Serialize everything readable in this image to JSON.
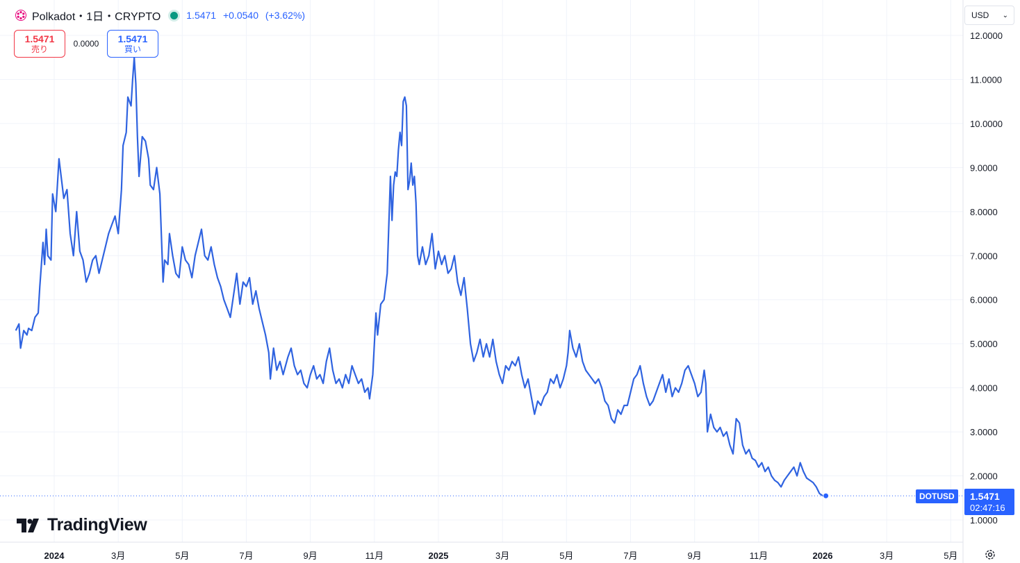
{
  "header": {
    "title": "Polkadot・1日・CRYPTO",
    "last": "1.5471",
    "change": "+0.0540",
    "change_pct": "(+3.62%)",
    "logo_icon": "polkadot-logo-icon",
    "status_color": "#089981"
  },
  "trade": {
    "sell_price": "1.5471",
    "sell_label": "売り",
    "spread": "0.0000",
    "buy_price": "1.5471",
    "buy_label": "買い"
  },
  "currency": {
    "selected": "USD"
  },
  "brand": {
    "name": "TradingView"
  },
  "price_badge": {
    "symbol": "DOTUSD",
    "price": "1.5471",
    "countdown": "02:47:16"
  },
  "colors": {
    "line": "#2f63e0",
    "accent": "#2962ff",
    "sell": "#f23645",
    "grid": "#f0f3fa"
  },
  "chart_data": {
    "type": "line",
    "ylim": [
      0.3,
      12.5
    ],
    "y_ticks": [
      "1.0000",
      "2.0000",
      "3.0000",
      "4.0000",
      "5.0000",
      "6.0000",
      "7.0000",
      "8.0000",
      "9.0000",
      "10.0000",
      "11.0000",
      "12.0000"
    ],
    "x_ticks": [
      {
        "label": "2024",
        "t": 0.0,
        "bold": true
      },
      {
        "label": "3月",
        "t": 2.0
      },
      {
        "label": "5月",
        "t": 4.0
      },
      {
        "label": "7月",
        "t": 6.0
      },
      {
        "label": "9月",
        "t": 8.0
      },
      {
        "label": "11月",
        "t": 10.0
      },
      {
        "label": "2025",
        "t": 12.0,
        "bold": true
      },
      {
        "label": "3月",
        "t": 14.0
      },
      {
        "label": "5月",
        "t": 16.0
      },
      {
        "label": "7月",
        "t": 18.0
      },
      {
        "label": "9月",
        "t": 20.0
      },
      {
        "label": "11月",
        "t": 22.0
      },
      {
        "label": "2026",
        "t": 24.0,
        "bold": true
      },
      {
        "label": "3月",
        "t": 26.0
      },
      {
        "label": "5月",
        "t": 28.0
      }
    ],
    "xlim": [
      -1.2,
      28.3
    ],
    "grid": true,
    "last_value": 1.5471,
    "series": [
      {
        "points": [
          [
            -1.2,
            5.3
          ],
          [
            -1.1,
            5.45
          ],
          [
            -1.05,
            4.9
          ],
          [
            -0.95,
            5.3
          ],
          [
            -0.85,
            5.2
          ],
          [
            -0.8,
            5.35
          ],
          [
            -0.7,
            5.3
          ],
          [
            -0.6,
            5.6
          ],
          [
            -0.5,
            5.7
          ],
          [
            -0.45,
            6.3
          ],
          [
            -0.35,
            7.3
          ],
          [
            -0.3,
            6.8
          ],
          [
            -0.25,
            7.6
          ],
          [
            -0.2,
            7.0
          ],
          [
            -0.1,
            6.9
          ],
          [
            -0.05,
            8.4
          ],
          [
            0.05,
            8.0
          ],
          [
            0.15,
            9.2
          ],
          [
            0.3,
            8.3
          ],
          [
            0.4,
            8.5
          ],
          [
            0.5,
            7.5
          ],
          [
            0.6,
            7.0
          ],
          [
            0.7,
            8.0
          ],
          [
            0.8,
            7.1
          ],
          [
            0.9,
            6.9
          ],
          [
            1.0,
            6.4
          ],
          [
            1.1,
            6.6
          ],
          [
            1.2,
            6.9
          ],
          [
            1.3,
            7.0
          ],
          [
            1.4,
            6.6
          ],
          [
            1.5,
            6.9
          ],
          [
            1.6,
            7.2
          ],
          [
            1.7,
            7.5
          ],
          [
            1.8,
            7.7
          ],
          [
            1.9,
            7.9
          ],
          [
            2.0,
            7.5
          ],
          [
            2.1,
            8.5
          ],
          [
            2.15,
            9.5
          ],
          [
            2.25,
            9.8
          ],
          [
            2.3,
            10.6
          ],
          [
            2.4,
            10.4
          ],
          [
            2.45,
            11.0
          ],
          [
            2.5,
            11.5
          ],
          [
            2.55,
            10.9
          ],
          [
            2.6,
            9.7
          ],
          [
            2.65,
            8.8
          ],
          [
            2.75,
            9.7
          ],
          [
            2.85,
            9.6
          ],
          [
            2.95,
            9.2
          ],
          [
            3.0,
            8.6
          ],
          [
            3.1,
            8.5
          ],
          [
            3.2,
            9.0
          ],
          [
            3.3,
            8.4
          ],
          [
            3.4,
            6.4
          ],
          [
            3.45,
            6.9
          ],
          [
            3.55,
            6.8
          ],
          [
            3.6,
            7.5
          ],
          [
            3.7,
            7.0
          ],
          [
            3.8,
            6.6
          ],
          [
            3.9,
            6.5
          ],
          [
            4.0,
            7.2
          ],
          [
            4.1,
            6.9
          ],
          [
            4.2,
            6.8
          ],
          [
            4.3,
            6.5
          ],
          [
            4.4,
            7.0
          ],
          [
            4.5,
            7.3
          ],
          [
            4.6,
            7.6
          ],
          [
            4.7,
            7.0
          ],
          [
            4.8,
            6.9
          ],
          [
            4.9,
            7.2
          ],
          [
            5.0,
            6.8
          ],
          [
            5.1,
            6.5
          ],
          [
            5.2,
            6.3
          ],
          [
            5.3,
            6.0
          ],
          [
            5.4,
            5.8
          ],
          [
            5.5,
            5.6
          ],
          [
            5.6,
            6.1
          ],
          [
            5.7,
            6.6
          ],
          [
            5.8,
            5.9
          ],
          [
            5.9,
            6.4
          ],
          [
            6.0,
            6.3
          ],
          [
            6.1,
            6.5
          ],
          [
            6.2,
            5.9
          ],
          [
            6.3,
            6.2
          ],
          [
            6.4,
            5.8
          ],
          [
            6.5,
            5.5
          ],
          [
            6.6,
            5.2
          ],
          [
            6.7,
            4.8
          ],
          [
            6.75,
            4.2
          ],
          [
            6.85,
            4.9
          ],
          [
            6.95,
            4.4
          ],
          [
            7.05,
            4.6
          ],
          [
            7.15,
            4.3
          ],
          [
            7.3,
            4.7
          ],
          [
            7.4,
            4.9
          ],
          [
            7.5,
            4.5
          ],
          [
            7.6,
            4.3
          ],
          [
            7.7,
            4.4
          ],
          [
            7.8,
            4.1
          ],
          [
            7.9,
            4.0
          ],
          [
            8.0,
            4.3
          ],
          [
            8.1,
            4.5
          ],
          [
            8.2,
            4.2
          ],
          [
            8.3,
            4.3
          ],
          [
            8.4,
            4.1
          ],
          [
            8.5,
            4.6
          ],
          [
            8.6,
            4.9
          ],
          [
            8.7,
            4.4
          ],
          [
            8.8,
            4.1
          ],
          [
            8.9,
            4.2
          ],
          [
            9.0,
            4.0
          ],
          [
            9.1,
            4.3
          ],
          [
            9.2,
            4.1
          ],
          [
            9.3,
            4.5
          ],
          [
            9.4,
            4.3
          ],
          [
            9.5,
            4.1
          ],
          [
            9.6,
            4.2
          ],
          [
            9.7,
            3.9
          ],
          [
            9.8,
            4.0
          ],
          [
            9.85,
            3.75
          ],
          [
            9.95,
            4.3
          ],
          [
            10.05,
            5.7
          ],
          [
            10.1,
            5.2
          ],
          [
            10.2,
            5.9
          ],
          [
            10.3,
            6.0
          ],
          [
            10.4,
            6.6
          ],
          [
            10.5,
            8.8
          ],
          [
            10.55,
            7.8
          ],
          [
            10.6,
            8.6
          ],
          [
            10.65,
            8.9
          ],
          [
            10.7,
            8.8
          ],
          [
            10.75,
            9.4
          ],
          [
            10.8,
            9.8
          ],
          [
            10.85,
            9.5
          ],
          [
            10.9,
            10.5
          ],
          [
            10.95,
            10.6
          ],
          [
            11.0,
            10.4
          ],
          [
            11.05,
            8.5
          ],
          [
            11.1,
            8.7
          ],
          [
            11.15,
            9.1
          ],
          [
            11.2,
            8.6
          ],
          [
            11.25,
            8.8
          ],
          [
            11.3,
            8.2
          ],
          [
            11.35,
            7.0
          ],
          [
            11.4,
            6.8
          ],
          [
            11.5,
            7.2
          ],
          [
            11.6,
            6.8
          ],
          [
            11.7,
            7.0
          ],
          [
            11.8,
            7.5
          ],
          [
            11.9,
            6.7
          ],
          [
            12.0,
            7.1
          ],
          [
            12.1,
            6.8
          ],
          [
            12.2,
            7.0
          ],
          [
            12.3,
            6.6
          ],
          [
            12.4,
            6.7
          ],
          [
            12.5,
            7.0
          ],
          [
            12.6,
            6.4
          ],
          [
            12.7,
            6.1
          ],
          [
            12.8,
            6.5
          ],
          [
            12.9,
            5.8
          ],
          [
            13.0,
            5.0
          ],
          [
            13.1,
            4.6
          ],
          [
            13.2,
            4.8
          ],
          [
            13.3,
            5.1
          ],
          [
            13.4,
            4.7
          ],
          [
            13.5,
            5.0
          ],
          [
            13.6,
            4.7
          ],
          [
            13.7,
            5.1
          ],
          [
            13.8,
            4.6
          ],
          [
            13.9,
            4.3
          ],
          [
            14.0,
            4.1
          ],
          [
            14.1,
            4.5
          ],
          [
            14.2,
            4.4
          ],
          [
            14.3,
            4.6
          ],
          [
            14.4,
            4.5
          ],
          [
            14.5,
            4.7
          ],
          [
            14.6,
            4.3
          ],
          [
            14.7,
            4.0
          ],
          [
            14.8,
            4.2
          ],
          [
            14.9,
            3.8
          ],
          [
            15.0,
            3.4
          ],
          [
            15.1,
            3.7
          ],
          [
            15.2,
            3.6
          ],
          [
            15.3,
            3.8
          ],
          [
            15.4,
            3.9
          ],
          [
            15.5,
            4.2
          ],
          [
            15.6,
            4.1
          ],
          [
            15.7,
            4.3
          ],
          [
            15.8,
            4.0
          ],
          [
            15.9,
            4.2
          ],
          [
            16.0,
            4.5
          ],
          [
            16.05,
            4.8
          ],
          [
            16.1,
            5.3
          ],
          [
            16.2,
            4.9
          ],
          [
            16.3,
            4.7
          ],
          [
            16.4,
            5.0
          ],
          [
            16.5,
            4.6
          ],
          [
            16.6,
            4.4
          ],
          [
            16.7,
            4.3
          ],
          [
            16.8,
            4.2
          ],
          [
            16.9,
            4.1
          ],
          [
            17.0,
            4.2
          ],
          [
            17.1,
            4.0
          ],
          [
            17.2,
            3.7
          ],
          [
            17.3,
            3.6
          ],
          [
            17.4,
            3.3
          ],
          [
            17.5,
            3.2
          ],
          [
            17.6,
            3.5
          ],
          [
            17.7,
            3.4
          ],
          [
            17.8,
            3.6
          ],
          [
            17.9,
            3.6
          ],
          [
            18.0,
            3.9
          ],
          [
            18.1,
            4.2
          ],
          [
            18.2,
            4.3
          ],
          [
            18.3,
            4.5
          ],
          [
            18.4,
            4.1
          ],
          [
            18.5,
            3.8
          ],
          [
            18.6,
            3.6
          ],
          [
            18.7,
            3.7
          ],
          [
            18.8,
            3.9
          ],
          [
            18.9,
            4.1
          ],
          [
            19.0,
            4.3
          ],
          [
            19.1,
            3.9
          ],
          [
            19.2,
            4.2
          ],
          [
            19.3,
            3.8
          ],
          [
            19.4,
            4.0
          ],
          [
            19.5,
            3.9
          ],
          [
            19.6,
            4.1
          ],
          [
            19.7,
            4.4
          ],
          [
            19.8,
            4.5
          ],
          [
            19.9,
            4.3
          ],
          [
            20.0,
            4.1
          ],
          [
            20.1,
            3.8
          ],
          [
            20.2,
            3.9
          ],
          [
            20.3,
            4.4
          ],
          [
            20.35,
            4.1
          ],
          [
            20.4,
            3.0
          ],
          [
            20.5,
            3.4
          ],
          [
            20.6,
            3.1
          ],
          [
            20.7,
            3.0
          ],
          [
            20.8,
            3.1
          ],
          [
            20.9,
            2.9
          ],
          [
            21.0,
            3.0
          ],
          [
            21.1,
            2.7
          ],
          [
            21.2,
            2.5
          ],
          [
            21.3,
            3.3
          ],
          [
            21.4,
            3.2
          ],
          [
            21.5,
            2.7
          ],
          [
            21.6,
            2.5
          ],
          [
            21.7,
            2.6
          ],
          [
            21.8,
            2.4
          ],
          [
            21.9,
            2.35
          ],
          [
            22.0,
            2.2
          ],
          [
            22.1,
            2.3
          ],
          [
            22.2,
            2.1
          ],
          [
            22.3,
            2.2
          ],
          [
            22.4,
            2.0
          ],
          [
            22.5,
            1.9
          ],
          [
            22.6,
            1.85
          ],
          [
            22.7,
            1.75
          ],
          [
            22.8,
            1.9
          ],
          [
            22.9,
            2.0
          ],
          [
            23.0,
            2.1
          ],
          [
            23.1,
            2.2
          ],
          [
            23.2,
            2.0
          ],
          [
            23.3,
            2.3
          ],
          [
            23.4,
            2.1
          ],
          [
            23.5,
            1.95
          ],
          [
            23.6,
            1.9
          ],
          [
            23.7,
            1.85
          ],
          [
            23.8,
            1.75
          ],
          [
            23.9,
            1.6
          ],
          [
            24.0,
            1.55
          ],
          [
            24.1,
            1.5471
          ]
        ]
      }
    ]
  }
}
